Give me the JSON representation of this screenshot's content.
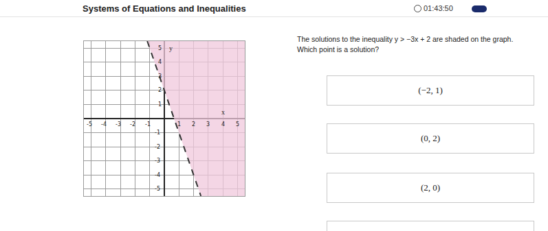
{
  "header": {
    "title": "Systems of Equations and Inequalities",
    "timer": "01:43:50"
  },
  "question": "The solutions to the inequality y > −3x + 2 are shaded on the graph. Which point is a solution?",
  "options": [
    "(−2, 1)",
    "(0, 2)",
    "(2, 0)"
  ],
  "chart_data": {
    "type": "inequality",
    "x_label": "x",
    "y_label": "y",
    "xlim": [
      -5.5,
      5.5
    ],
    "ylim": [
      -5.5,
      5.5
    ],
    "xticks": [
      -5,
      -4,
      -3,
      -2,
      -1,
      1,
      2,
      3,
      4,
      5
    ],
    "yticks": [
      -5,
      -4,
      -3,
      -2,
      -1,
      1,
      2,
      3,
      4,
      5
    ],
    "grid": true,
    "series": [
      {
        "type": "area",
        "color": "#f0c8dc",
        "x": [
          -1.1667,
          5.5,
          5.5,
          2.5
        ],
        "values": [
          5.5,
          5.5,
          -5.5,
          -5.5
        ]
      },
      {
        "type": "line",
        "color": "#333333",
        "line_style": "dashed",
        "x": [
          -1.1667,
          2.5
        ],
        "values": [
          5.5,
          -5.5
        ]
      }
    ]
  }
}
